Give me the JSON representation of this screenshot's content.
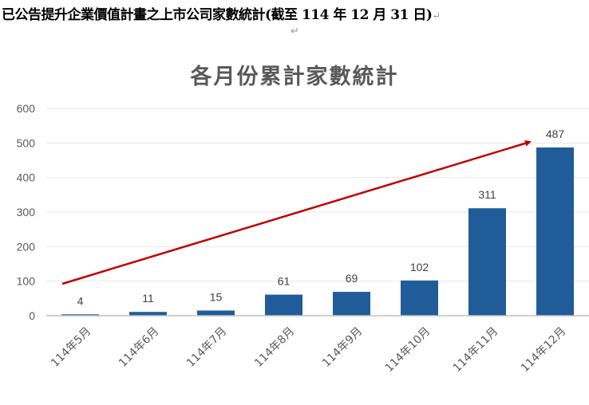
{
  "document": {
    "heading": "已公告提升企業價值計畫之上市公司家數統計(截至 114 年 12 月 31 日)",
    "paragraph_mark": "↵"
  },
  "chart_data": {
    "type": "bar",
    "title": "各月份累計家數統計",
    "categories": [
      "114年5月",
      "114年6月",
      "114年7月",
      "114年8月",
      "114年9月",
      "114年10月",
      "114年11月",
      "114年12月"
    ],
    "values": [
      4,
      11,
      15,
      61,
      69,
      102,
      311,
      487
    ],
    "xlabel": "",
    "ylabel": "",
    "ylim": [
      0,
      600
    ],
    "yticks": [
      0,
      100,
      200,
      300,
      400,
      500,
      600
    ],
    "grid": true,
    "legend": "none",
    "data_labels": true,
    "bar_color": "#1F5C99",
    "annotations": [
      {
        "type": "arrow",
        "color": "#C00000",
        "description": "upward trend arrow from 114年5月 to 114年12月"
      }
    ]
  }
}
